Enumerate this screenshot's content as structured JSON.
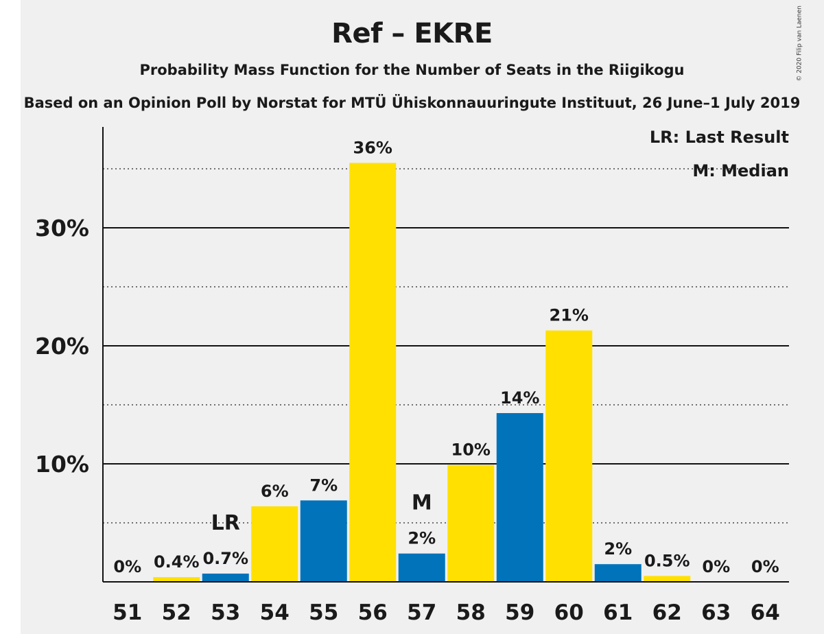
{
  "copyright": "© 2020 Filip van Laenen",
  "chart_data": {
    "type": "bar",
    "title": "Ref – EKRE",
    "subtitle": "Probability Mass Function for the Number of Seats in the Riigikogu",
    "source": "Based on an Opinion Poll by Norstat for MTÜ Ühiskonnauuringute Instituut, 26 June–1 July 2019",
    "xlabel": "",
    "ylabel": "",
    "ylim": [
      0,
      38.5
    ],
    "yticks": [
      {
        "value": 10,
        "label": "10%"
      },
      {
        "value": 20,
        "label": "20%"
      },
      {
        "value": 30,
        "label": "30%"
      }
    ],
    "minor_gridlines": [
      5,
      15,
      25,
      35
    ],
    "categories": [
      "51",
      "52",
      "53",
      "54",
      "55",
      "56",
      "57",
      "58",
      "59",
      "60",
      "61",
      "62",
      "63",
      "64"
    ],
    "values": [
      0,
      0.4,
      0.7,
      6.4,
      6.9,
      35.5,
      2.4,
      9.9,
      14.3,
      21.3,
      1.5,
      0.5,
      0,
      0
    ],
    "value_labels": [
      "0%",
      "0.4%",
      "0.7%",
      "6%",
      "7%",
      "36%",
      "2%",
      "10%",
      "14%",
      "21%",
      "2%",
      "0.5%",
      "0%",
      "0%"
    ],
    "bar_colors": [
      "#FFE000",
      "#FFE000",
      "#0073BB",
      "#FFE000",
      "#0073BB",
      "#FFE000",
      "#0073BB",
      "#FFE000",
      "#0073BB",
      "#FFE000",
      "#0073BB",
      "#FFE000",
      "#0073BB",
      "#FFE000"
    ],
    "markers": [
      {
        "category": "53",
        "text": "LR"
      },
      {
        "category": "57",
        "text": "M"
      }
    ],
    "legend": {
      "position": "top-right",
      "items": [
        "LR: Last Result",
        "M: Median"
      ]
    },
    "grid": true
  }
}
